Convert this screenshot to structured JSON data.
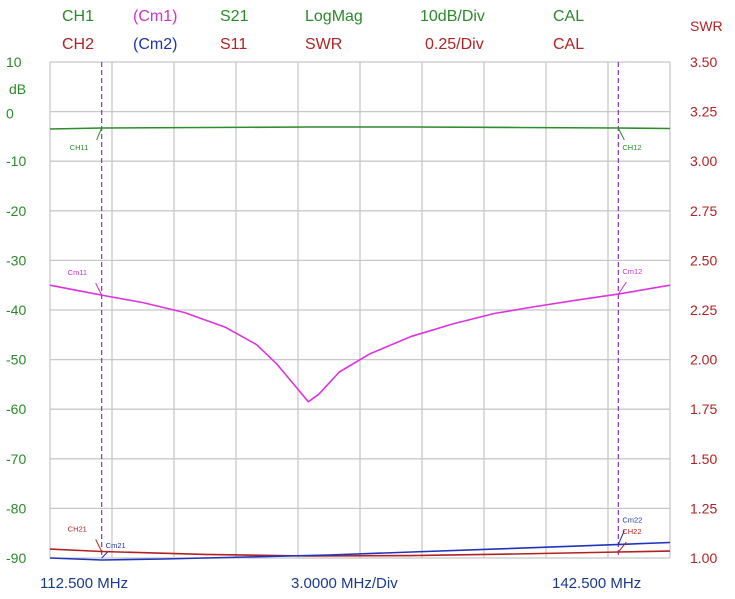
{
  "header": {
    "row1": [
      {
        "text": "CH1",
        "color": "#2a8a2a"
      },
      {
        "text": "(Cm1)",
        "color": "#cc33cc"
      },
      {
        "text": "S21",
        "color": "#2a8a2a"
      },
      {
        "text": "LogMag",
        "color": "#2a8a2a"
      },
      {
        "text": "10dB/Div",
        "color": "#2a8a2a"
      },
      {
        "text": "CAL",
        "color": "#2a8a2a"
      }
    ],
    "row2": [
      {
        "text": "CH2",
        "color": "#b22222"
      },
      {
        "text": "(Cm2)",
        "color": "#2233aa"
      },
      {
        "text": "S11",
        "color": "#b22222"
      },
      {
        "text": "SWR",
        "color": "#b22222"
      },
      {
        "text": "0.25/Div",
        "color": "#b22222"
      },
      {
        "text": "CAL",
        "color": "#b22222"
      }
    ],
    "right_axis_title": "SWR"
  },
  "chart_data": {
    "type": "line",
    "left_axis": {
      "unit_label": "dB",
      "ticks": [
        "10",
        "0",
        "-10",
        "-20",
        "-30",
        "-40",
        "-50",
        "-60",
        "-70",
        "-80",
        "-90"
      ],
      "range": [
        -90,
        10
      ],
      "color": "#2a8a2a"
    },
    "right_axis": {
      "title": "SWR",
      "ticks": [
        "3.50",
        "3.25",
        "3.00",
        "2.75",
        "2.50",
        "2.25",
        "2.00",
        "1.75",
        "1.50",
        "1.25",
        "1.00"
      ],
      "range": [
        1.0,
        3.5
      ],
      "color": "#b22222"
    },
    "x_axis": {
      "range": [
        112.5,
        142.5
      ],
      "start_label": "112.500 MHz",
      "center_label": "3.0000 MHz/Div",
      "stop_label": "142.500 MHz"
    },
    "grid": true,
    "series": [
      {
        "name": "CH1",
        "axis": "left",
        "color": "#2e8b2e",
        "x": [
          112.5,
          115.0,
          120.0,
          125.0,
          130.0,
          135.0,
          140.0,
          142.5
        ],
        "y": [
          -3.5,
          -3.3,
          -3.2,
          -3.1,
          -3.1,
          -3.2,
          -3.3,
          -3.4
        ]
      },
      {
        "name": "Cm1",
        "axis": "left",
        "color": "#dd33dd",
        "x": [
          112.5,
          114.0,
          115.0,
          117.0,
          119.0,
          121.0,
          122.5,
          123.5,
          124.5,
          125.0,
          125.5,
          126.5,
          128.0,
          130.0,
          132.0,
          134.0,
          136.0,
          138.0,
          140.0,
          142.5
        ],
        "y": [
          -35.0,
          -36.2,
          -37.0,
          -38.5,
          -40.5,
          -43.5,
          -47.0,
          -51.0,
          -56.0,
          -58.5,
          -57.0,
          -52.5,
          -48.8,
          -45.3,
          -42.8,
          -40.7,
          -39.3,
          -38.0,
          -36.8,
          -35.0
        ]
      },
      {
        "name": "CH2",
        "axis": "right",
        "color": "#b22222",
        "x": [
          112.5,
          115.0,
          120.0,
          125.0,
          130.0,
          135.0,
          140.0,
          142.5
        ],
        "y": [
          1.045,
          1.033,
          1.018,
          1.01,
          1.012,
          1.02,
          1.03,
          1.035
        ]
      },
      {
        "name": "Cm2",
        "axis": "right",
        "color": "#2233bb",
        "x": [
          112.5,
          115.0,
          118.0,
          122.0,
          126.0,
          130.0,
          134.0,
          138.0,
          142.5
        ],
        "y": [
          1.0,
          0.99,
          0.995,
          1.005,
          1.015,
          1.03,
          1.045,
          1.06,
          1.078
        ]
      }
    ],
    "marker_freqs": [
      115.0,
      140.0
    ],
    "marker_labels": [
      {
        "text": "CH11",
        "series": "CH1",
        "marker": 0,
        "color": "#2a8a2a"
      },
      {
        "text": "CH12",
        "series": "CH1",
        "marker": 1,
        "color": "#2a8a2a"
      },
      {
        "text": "Cm11",
        "series": "Cm1",
        "marker": 0,
        "color": "#cc33cc"
      },
      {
        "text": "Cm12",
        "series": "Cm1",
        "marker": 1,
        "color": "#cc33cc"
      },
      {
        "text": "CH21",
        "series": "CH2",
        "marker": 0,
        "color": "#b22222"
      },
      {
        "text": "CH22",
        "series": "CH2",
        "marker": 1,
        "color": "#b22222"
      },
      {
        "text": "Cm21",
        "series": "Cm2",
        "marker": 0,
        "color": "#2233aa"
      },
      {
        "text": "Cm22",
        "series": "Cm2",
        "marker": 1,
        "color": "#2233aa"
      }
    ],
    "marker_line_color": "#8833cc",
    "grid_color": "#c8c8c8"
  }
}
